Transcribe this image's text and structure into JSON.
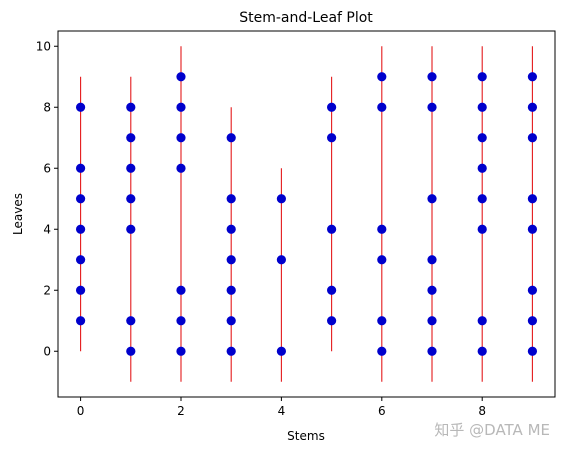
{
  "chart_data": {
    "type": "scatter",
    "title": "Stem-and-Leaf Plot",
    "xlabel": "Stems",
    "ylabel": "Leaves",
    "xlim": [
      -0.45,
      9.45
    ],
    "ylim": [
      -1.5,
      10.5
    ],
    "xticks": [
      0,
      2,
      4,
      6,
      8
    ],
    "yticks": [
      0,
      2,
      4,
      6,
      8,
      10
    ],
    "grid": false,
    "colors": {
      "stem_line": "#e41a1c",
      "marker": "#0000cc"
    },
    "stems": [
      {
        "stem": 0,
        "line_range": [
          0,
          9
        ],
        "leaves": [
          1,
          2,
          3,
          4,
          5,
          6,
          8
        ]
      },
      {
        "stem": 1,
        "line_range": [
          -1,
          9
        ],
        "leaves": [
          0,
          1,
          4,
          5,
          6,
          7,
          8
        ]
      },
      {
        "stem": 2,
        "line_range": [
          -1,
          10
        ],
        "leaves": [
          0,
          1,
          2,
          6,
          7,
          8,
          9
        ]
      },
      {
        "stem": 3,
        "line_range": [
          -1,
          8
        ],
        "leaves": [
          0,
          1,
          2,
          3,
          4,
          5,
          7
        ]
      },
      {
        "stem": 4,
        "line_range": [
          -1,
          6
        ],
        "leaves": [
          0,
          3,
          5
        ]
      },
      {
        "stem": 5,
        "line_range": [
          0,
          9
        ],
        "leaves": [
          1,
          2,
          4,
          7,
          8
        ]
      },
      {
        "stem": 6,
        "line_range": [
          -1,
          10
        ],
        "leaves": [
          0,
          1,
          3,
          4,
          8,
          9
        ]
      },
      {
        "stem": 7,
        "line_range": [
          -1,
          10
        ],
        "leaves": [
          0,
          1,
          2,
          3,
          5,
          8,
          9
        ]
      },
      {
        "stem": 8,
        "line_range": [
          -1,
          10
        ],
        "leaves": [
          0,
          1,
          4,
          5,
          6,
          7,
          8,
          9
        ]
      },
      {
        "stem": 9,
        "line_range": [
          -1,
          10
        ],
        "leaves": [
          0,
          1,
          2,
          4,
          5,
          7,
          8,
          9
        ]
      }
    ]
  },
  "watermark": "知乎 @DATA ME"
}
